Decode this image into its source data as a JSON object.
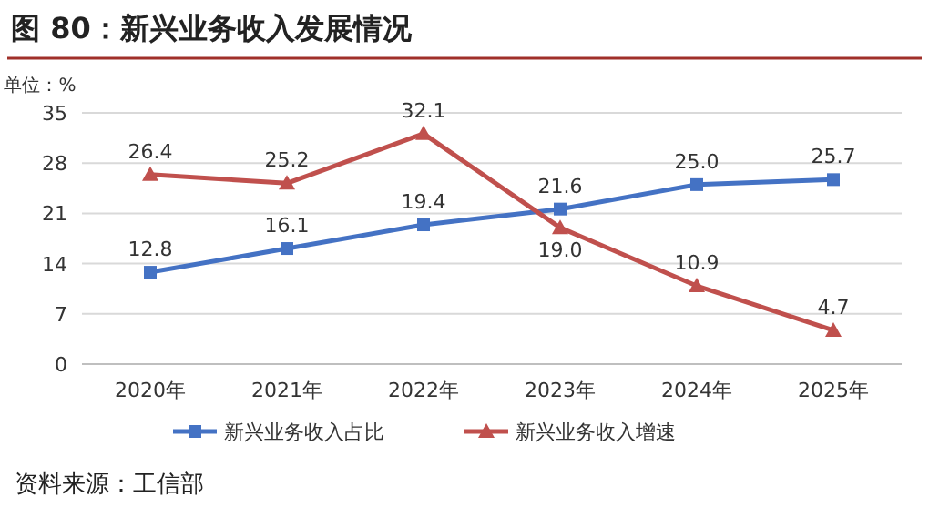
{
  "chart_data": {
    "type": "line",
    "title": "图 80：新兴业务收入发展情况",
    "ylabel": "单位：%",
    "categories": [
      "2020年",
      "2021年",
      "2022年",
      "2023年",
      "2024年",
      "2025年"
    ],
    "series": [
      {
        "name": "新兴业务收入占比",
        "color": "#4472c4",
        "marker": "square",
        "values": [
          12.8,
          16.1,
          19.4,
          21.6,
          25.0,
          25.7
        ],
        "value_labels": [
          "12.8",
          "16.1",
          "19.4",
          "21.6",
          "25.0",
          "25.7"
        ]
      },
      {
        "name": "新兴业务收入增速",
        "color": "#c0504d",
        "marker": "triangle",
        "values": [
          26.4,
          25.2,
          32.1,
          19.0,
          10.9,
          4.7
        ],
        "value_labels": [
          "26.4",
          "25.2",
          "32.1",
          "19.0",
          "10.9",
          "4.7"
        ]
      }
    ],
    "ylim": [
      0,
      35
    ],
    "yticks": [
      0,
      7,
      14,
      21,
      28,
      35
    ],
    "grid": "y",
    "legend": "bottom",
    "annotations": [
      "资料来源：工信部"
    ]
  }
}
